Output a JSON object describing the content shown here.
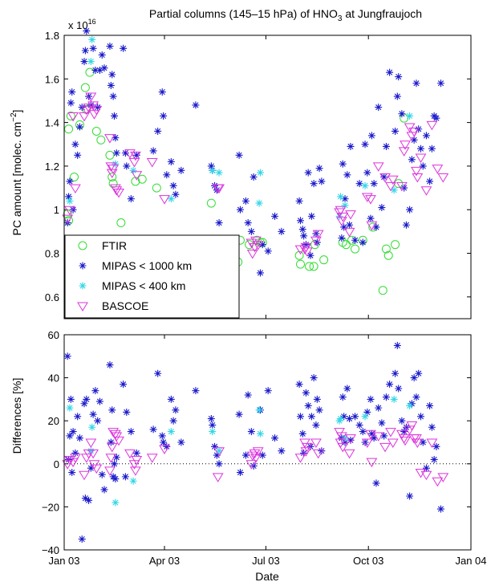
{
  "chart_data": [
    {
      "type": "scatter",
      "title": "Partial columns (145–15 hPa) of HNO",
      "title_sub": "3",
      "title_tail": " at Jungfraujoch",
      "ylabel": "PC amount [molec. cm",
      "ylabel_sup": "−2",
      "ylabel_tail": "]",
      "exponent_label": "x 10",
      "exponent_sup": "16",
      "xlim": [
        0,
        365
      ],
      "ylim": [
        0.5,
        1.8
      ],
      "yticks": [
        0.6,
        0.8,
        1.0,
        1.2,
        1.4,
        1.6,
        1.8
      ],
      "ytick_labels": [
        "0.6",
        "0.8",
        "1",
        "1.2",
        "1.4",
        "1.6",
        "1.8"
      ],
      "legend_position": "lower-left",
      "series": [
        {
          "name": "FTIR",
          "marker": "circle",
          "color": "#33dd33",
          "x": [
            3,
            4,
            4,
            6,
            9,
            14,
            19,
            20,
            23,
            29,
            33,
            41,
            43,
            44,
            51,
            64,
            70,
            83,
            132,
            133,
            137,
            139,
            156,
            158,
            166,
            173,
            176,
            178,
            211,
            212,
            220,
            224,
            225,
            233,
            250,
            253,
            258,
            261,
            268,
            277,
            286,
            289,
            291,
            297,
            300,
            305
          ],
          "y": [
            0.98,
            0.95,
            1.37,
            1.43,
            1.15,
            1.39,
            1.56,
            1.46,
            1.63,
            1.36,
            1.32,
            1.25,
            1.15,
            1.12,
            0.94,
            1.13,
            1.14,
            1.1,
            1.03,
            0.82,
            0.82,
            0.79,
            0.76,
            0.86,
            0.84,
            0.86,
            0.85,
            0.85,
            0.79,
            0.75,
            0.74,
            0.74,
            0.84,
            0.77,
            0.85,
            0.84,
            0.86,
            0.82,
            0.86,
            0.92,
            0.63,
            0.82,
            0.79,
            0.84,
            1.12,
            1.42
          ]
        },
        {
          "name": "MIPAS < 1000 km",
          "marker": "star",
          "color": "#1a1acc",
          "x": [
            3,
            4,
            5,
            6,
            7,
            8,
            10,
            12,
            14,
            16,
            18,
            19,
            20,
            22,
            24,
            26,
            28,
            30,
            32,
            34,
            36,
            41,
            42,
            43,
            44,
            45,
            46,
            47,
            53,
            55,
            56,
            60,
            65,
            80,
            84,
            88,
            89,
            92,
            96,
            98,
            100,
            105,
            118,
            132,
            133,
            135,
            137,
            139,
            157,
            158,
            163,
            165,
            168,
            170,
            176,
            178,
            183,
            189,
            195,
            211,
            212,
            214,
            215,
            217,
            219,
            221,
            222,
            224,
            226,
            227,
            229,
            231,
            249,
            250,
            251,
            252,
            254,
            256,
            257,
            261,
            265,
            268,
            270,
            272,
            275,
            276,
            278,
            280,
            282,
            285,
            287,
            289,
            292,
            297,
            299,
            300,
            303,
            305,
            307,
            310,
            312,
            314,
            316,
            318,
            320,
            322,
            325,
            328,
            330,
            332,
            334,
            338
          ],
          "y": [
            0.94,
            1.06,
            1.13,
            1.49,
            1.54,
            1.0,
            1.3,
            1.25,
            1.38,
            1.47,
            1.68,
            1.73,
            1.82,
            1.52,
            1.48,
            1.74,
            1.64,
            1.47,
            1.64,
            1.71,
            1.65,
            1.75,
            1.57,
            1.62,
            1.52,
            1.43,
            1.33,
            1.26,
            1.74,
            1.26,
            1.2,
            1.05,
            1.25,
            1.27,
            1.36,
            1.54,
            1.43,
            1.16,
            1.22,
            1.11,
            1.07,
            1.18,
            1.48,
            1.2,
            1.18,
            1.11,
            1.09,
            0.94,
            1.25,
            1.0,
            1.04,
            0.94,
            0.9,
            1.15,
            0.71,
            0.84,
            0.81,
            0.97,
            0.9,
            1.04,
            0.95,
            0.91,
            0.88,
            0.84,
            1.17,
            0.79,
            0.97,
            1.12,
            0.89,
            0.85,
            1.19,
            1.13,
            0.87,
            1.21,
            0.92,
            1.05,
            1.16,
            0.93,
            1.29,
            0.86,
            1.12,
            0.85,
            1.3,
            1.17,
            0.96,
            1.34,
            1.12,
            0.92,
            1.47,
            1.01,
            1.15,
            1.29,
            1.63,
            1.36,
            1.52,
            1.61,
            1.44,
            1.1,
            0.93,
            1.0,
            1.23,
            1.32,
            1.58,
            1.37,
            1.28,
            1.2,
            1.34,
            1.13,
            1.28,
            1.43,
            1.42,
            1.58
          ]
        },
        {
          "name": "MIPAS < 400 km",
          "marker": "star",
          "color": "#33d6e6",
          "x": [
            5,
            24,
            25,
            46,
            62,
            96,
            133,
            139,
            175,
            176,
            247,
            248,
            252,
            270,
            296,
            310
          ],
          "y": [
            1.04,
            1.68,
            1.78,
            1.21,
            1.18,
            1.05,
            1.18,
            1.17,
            1.03,
            1.17,
            0.97,
            1.06,
            1.02,
            1.11,
            1.09,
            1.43
          ]
        },
        {
          "name": "BASCOE",
          "marker": "triangle-down",
          "color": "#dd33dd",
          "x": [
            3,
            5,
            8,
            10,
            18,
            20,
            22,
            24,
            26,
            27,
            29,
            41,
            42,
            43,
            44,
            46,
            47,
            49,
            59,
            63,
            64,
            65,
            79,
            90,
            138,
            139,
            168,
            169,
            171,
            172,
            174,
            212,
            216,
            217,
            218,
            226,
            228,
            247,
            248,
            249,
            250,
            256,
            257,
            272,
            275,
            276,
            282,
            288,
            293,
            295,
            303,
            305,
            306,
            310,
            312,
            314,
            316,
            317,
            320,
            325,
            330,
            335,
            340
          ],
          "y": [
            0.96,
            1.0,
            1.43,
            1.1,
            1.43,
            1.46,
            1.47,
            1.52,
            1.48,
            1.44,
            1.46,
            1.33,
            1.2,
            1.17,
            1.19,
            1.1,
            1.09,
            1.08,
            1.26,
            1.22,
            1.25,
            1.16,
            1.22,
            1.05,
            1.1,
            1.1,
            0.85,
            0.8,
            0.83,
            0.86,
            0.84,
            0.82,
            0.82,
            0.83,
            0.81,
            0.86,
            0.89,
            0.99,
            1.0,
            0.95,
            0.97,
            0.9,
            0.98,
            1.06,
            1.05,
            0.93,
            1.2,
            1.15,
            1.11,
            1.14,
            1.11,
            1.27,
            1.3,
            1.38,
            1.34,
            1.36,
            1.18,
            1.15,
            1.24,
            1.09,
            1.39,
            1.19,
            1.15
          ]
        }
      ]
    },
    {
      "type": "scatter",
      "xlabel": "Date",
      "ylabel": "Differences [%]",
      "xlim": [
        0,
        365
      ],
      "ylim": [
        -40,
        60
      ],
      "yticks": [
        -40,
        -20,
        0,
        20,
        40,
        60
      ],
      "ytick_labels": [
        "−40",
        "−20",
        "0",
        "20",
        "40",
        "60"
      ],
      "xticks": [
        0,
        90,
        181,
        273,
        365
      ],
      "xtick_labels": [
        "Jan 03",
        "Apr 03",
        "Jul 03",
        "Oct 03",
        "Jan 04"
      ],
      "zero_line": "dotted",
      "series": [
        {
          "name": "MIPAS < 1000 km",
          "marker": "star",
          "color": "#1a1acc",
          "x": [
            3,
            4,
            5,
            6,
            7,
            8,
            10,
            12,
            14,
            16,
            18,
            19,
            20,
            22,
            24,
            26,
            28,
            30,
            32,
            34,
            36,
            41,
            42,
            43,
            44,
            45,
            46,
            47,
            53,
            55,
            56,
            60,
            65,
            80,
            84,
            88,
            89,
            92,
            96,
            98,
            100,
            105,
            118,
            132,
            133,
            135,
            137,
            139,
            157,
            158,
            163,
            165,
            168,
            170,
            176,
            178,
            183,
            189,
            195,
            211,
            212,
            214,
            215,
            217,
            219,
            221,
            222,
            224,
            226,
            227,
            229,
            231,
            249,
            250,
            251,
            252,
            254,
            256,
            257,
            261,
            265,
            268,
            270,
            272,
            275,
            276,
            278,
            280,
            282,
            285,
            287,
            289,
            292,
            297,
            299,
            300,
            303,
            305,
            307,
            310,
            312,
            314,
            316,
            318,
            320,
            322,
            325,
            328,
            330,
            332,
            334,
            338
          ],
          "y": [
            50,
            2,
            13,
            30,
            -4,
            15,
            5,
            22,
            12,
            -35,
            28,
            -16,
            30,
            -17,
            -2,
            23,
            34,
            20,
            29,
            -5,
            -12,
            46,
            10,
            25,
            -6,
            0,
            -7,
            3,
            37,
            -6,
            24,
            15,
            5,
            16,
            42,
            13,
            10,
            8,
            30,
            20,
            25,
            10,
            34,
            21,
            18,
            8,
            4,
            0,
            23,
            -4,
            4,
            32,
            15,
            -1,
            25,
            4,
            34,
            12,
            6,
            37,
            22,
            14,
            5,
            33,
            27,
            8,
            22,
            40,
            18,
            30,
            25,
            6,
            12,
            31,
            22,
            10,
            35,
            21,
            11,
            22,
            18,
            15,
            10,
            24,
            30,
            14,
            12,
            -9,
            26,
            19,
            13,
            31,
            37,
            42,
            55,
            35,
            20,
            15,
            17,
            -15,
            28,
            40,
            31,
            42,
            22,
            10,
            -2,
            27,
            17,
            2,
            8,
            -21
          ]
        },
        {
          "name": "MIPAS < 400 km",
          "marker": "star",
          "color": "#33d6e6",
          "x": [
            5,
            24,
            25,
            46,
            62,
            96,
            133,
            139,
            175,
            176,
            247,
            248,
            252,
            270,
            296,
            310
          ],
          "y": [
            26,
            6,
            17,
            -18,
            -8,
            15,
            15,
            6,
            25,
            14,
            20,
            21,
            12,
            22,
            30,
            27
          ]
        },
        {
          "name": "BASCOE",
          "marker": "triangle-down",
          "color": "#dd33dd",
          "x": [
            3,
            5,
            8,
            10,
            18,
            20,
            22,
            24,
            26,
            27,
            29,
            41,
            42,
            43,
            44,
            46,
            47,
            49,
            59,
            63,
            64,
            65,
            79,
            90,
            138,
            139,
            168,
            169,
            171,
            172,
            174,
            212,
            216,
            217,
            218,
            226,
            228,
            247,
            248,
            249,
            250,
            256,
            257,
            272,
            275,
            276,
            282,
            288,
            293,
            295,
            303,
            305,
            306,
            310,
            312,
            314,
            316,
            317,
            320,
            325,
            330,
            335,
            340
          ],
          "y": [
            0,
            2,
            1,
            3,
            -5,
            3,
            5,
            10,
            5,
            0,
            -2,
            -3,
            3,
            8,
            15,
            14,
            13,
            11,
            5,
            0,
            -3,
            2,
            3,
            7,
            -6,
            6,
            0,
            4,
            5,
            3,
            6,
            3,
            10,
            6,
            8,
            10,
            5,
            15,
            10,
            13,
            8,
            5,
            12,
            10,
            14,
            1,
            13,
            8,
            15,
            10,
            14,
            12,
            11,
            16,
            18,
            12,
            12,
            10,
            -4,
            -5,
            10,
            -8,
            -6
          ]
        }
      ]
    }
  ]
}
